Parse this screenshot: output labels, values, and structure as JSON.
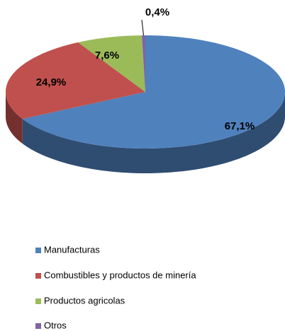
{
  "chart_data": {
    "type": "pie",
    "categories": [
      "Manufacturas",
      "Combustibles  y productos de minería",
      "Productos agricolas",
      "Otros"
    ],
    "values": [
      67.1,
      24.9,
      7.6,
      0.4
    ],
    "value_labels": [
      "67,1%",
      "24,9%",
      "7,6%",
      "0,4%"
    ],
    "colors": [
      "#4f81bd",
      "#c0504d",
      "#9bbb59",
      "#8064a2"
    ],
    "legend": "bottom"
  }
}
